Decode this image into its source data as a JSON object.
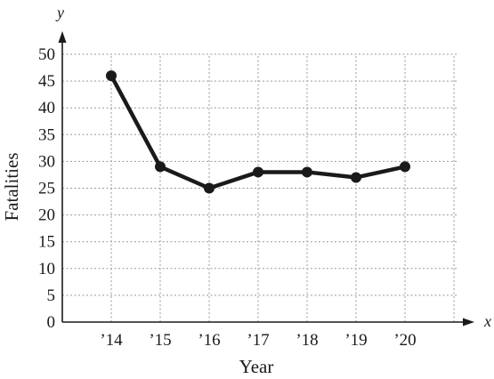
{
  "chart_data": {
    "type": "line",
    "title": "",
    "xlabel": "Year",
    "ylabel": "Fatalities",
    "x_axis_name": "x",
    "y_axis_name": "y",
    "categories": [
      "’14",
      "’15",
      "’16",
      "’17",
      "’18",
      "’19",
      "’20"
    ],
    "series": [
      {
        "values": [
          46,
          29,
          25,
          28,
          28,
          27,
          29
        ]
      }
    ],
    "ylim": [
      0,
      50
    ],
    "yticks": [
      0,
      5,
      10,
      15,
      20,
      25,
      30,
      35,
      40,
      45,
      50
    ],
    "grid": true,
    "legend": "none",
    "colors": {
      "line": "#1a1a1a",
      "grid": "#9a9a9a"
    }
  }
}
